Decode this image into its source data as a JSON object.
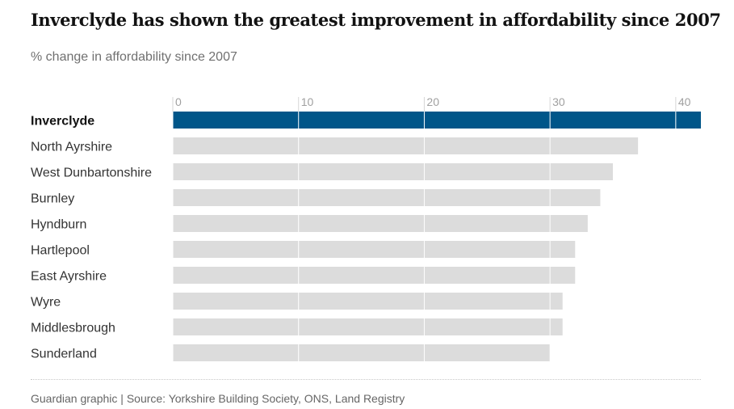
{
  "title": "Inverclyde has shown the greatest improvement in affordability since 2007",
  "subtitle": "% change in affordability since 2007",
  "source": "Guardian graphic | Source: Yorkshire Building Society, ONS, Land Registry",
  "colors": {
    "highlight": "#005689",
    "bar": "#dcdcdc",
    "gridline": "#ffffff",
    "tick": "#a0a0a0"
  },
  "chart_data": {
    "type": "bar",
    "orientation": "horizontal",
    "title": "Inverclyde has shown the greatest improvement in affordability since 2007",
    "subtitle": "% change in affordability since 2007",
    "categories": [
      "Inverclyde",
      "North Ayrshire",
      "West Dunbartonshire",
      "Burnley",
      "Hyndburn",
      "Hartlepool",
      "East Ayrshire",
      "Wyre",
      "Middlesbrough",
      "Sunderland"
    ],
    "values": [
      42,
      37,
      35,
      34,
      33,
      32,
      32,
      31,
      31,
      30
    ],
    "highlighted": [
      "Inverclyde"
    ],
    "xlim": [
      0,
      42
    ],
    "xticks": [
      0,
      10,
      20,
      30,
      40
    ],
    "xlabel": "",
    "ylabel": "",
    "grid": true,
    "axis_position": "top"
  }
}
